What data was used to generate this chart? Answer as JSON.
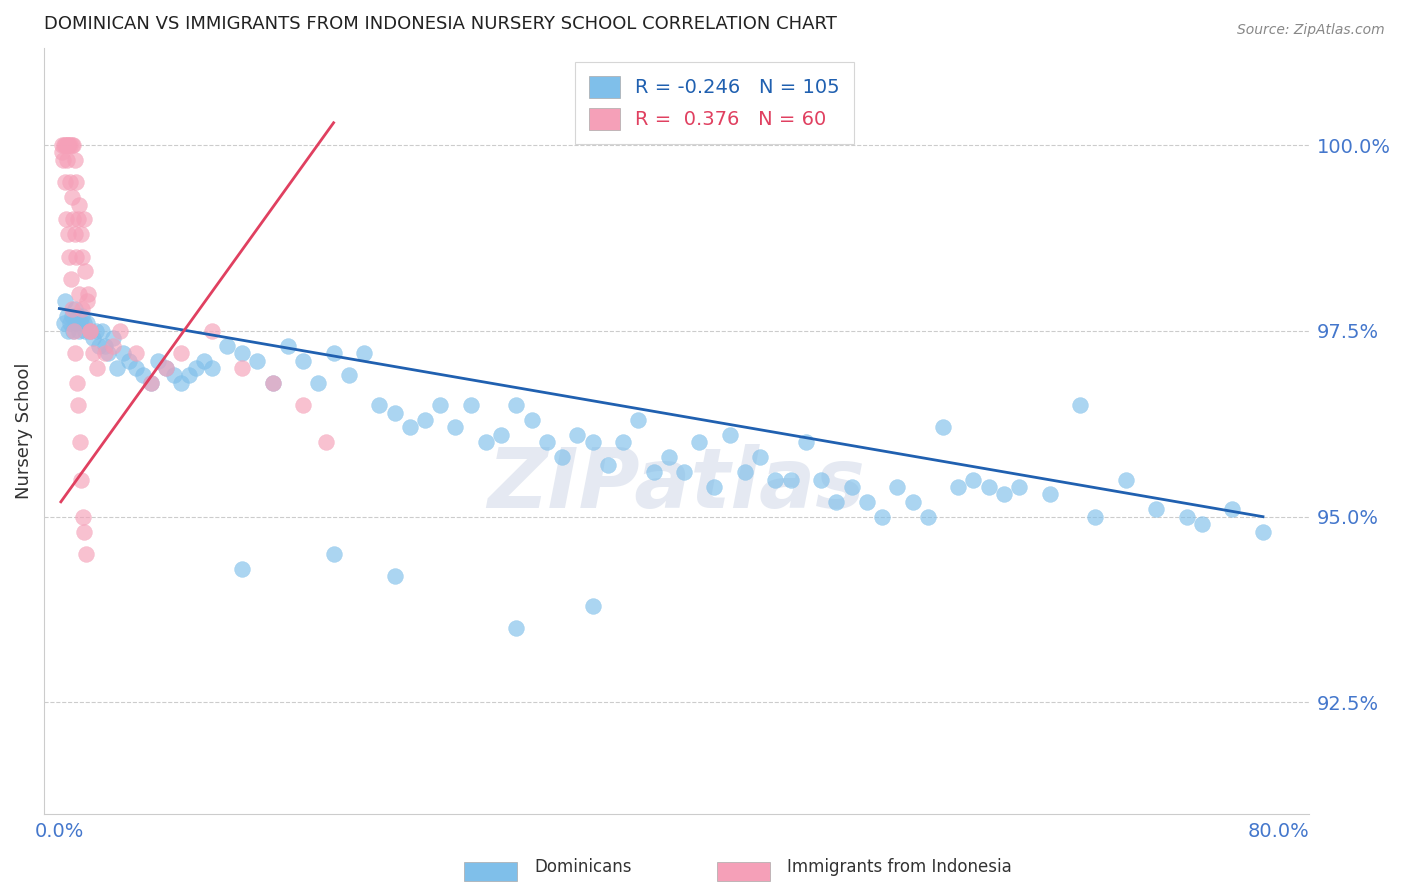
{
  "title": "DOMINICAN VS IMMIGRANTS FROM INDONESIA NURSERY SCHOOL CORRELATION CHART",
  "source": "Source: ZipAtlas.com",
  "ylabel": "Nursery School",
  "legend_labels": [
    "Dominicans",
    "Immigrants from Indonesia"
  ],
  "blue_R": -0.246,
  "blue_N": 105,
  "pink_R": 0.376,
  "pink_N": 60,
  "xlim": [
    -1.0,
    82
  ],
  "ylim": [
    91.0,
    101.3
  ],
  "yticks": [
    92.5,
    95.0,
    97.5,
    100.0
  ],
  "ytick_labels": [
    "92.5%",
    "95.0%",
    "97.5%",
    "100.0%"
  ],
  "xticks": [
    0,
    10,
    20,
    30,
    40,
    50,
    60,
    70,
    80
  ],
  "xtick_labels": [
    "0.0%",
    "",
    "",
    "",
    "",
    "",
    "",
    "",
    "80.0%"
  ],
  "watermark": "ZIPatlas",
  "blue_color": "#7fbfea",
  "pink_color": "#f5a0b8",
  "blue_line_color": "#2060b0",
  "pink_line_color": "#e04060",
  "tick_color": "#4477cc",
  "grid_color": "#cccccc",
  "blue_line_x": [
    0,
    79
  ],
  "blue_line_y": [
    97.8,
    95.0
  ],
  "pink_line_x": [
    0.1,
    18
  ],
  "pink_line_y": [
    95.2,
    100.3
  ],
  "blue_dots_x": [
    0.3,
    0.4,
    0.5,
    0.6,
    0.7,
    0.8,
    0.9,
    1.0,
    1.1,
    1.2,
    1.3,
    1.4,
    1.5,
    1.6,
    1.7,
    1.8,
    2.0,
    2.2,
    2.4,
    2.6,
    2.8,
    3.0,
    3.2,
    3.5,
    3.8,
    4.2,
    4.6,
    5.0,
    5.5,
    6.0,
    6.5,
    7.0,
    7.5,
    8.0,
    8.5,
    9.0,
    9.5,
    10.0,
    11.0,
    12.0,
    13.0,
    14.0,
    15.0,
    16.0,
    17.0,
    18.0,
    19.0,
    20.0,
    21.0,
    22.0,
    23.0,
    24.0,
    25.0,
    26.0,
    27.0,
    28.0,
    29.0,
    30.0,
    31.0,
    32.0,
    33.0,
    34.0,
    35.0,
    36.0,
    37.0,
    38.0,
    39.0,
    40.0,
    41.0,
    42.0,
    43.0,
    44.0,
    45.0,
    46.0,
    47.0,
    48.0,
    49.0,
    50.0,
    51.0,
    52.0,
    53.0,
    54.0,
    55.0,
    56.0,
    57.0,
    58.0,
    59.0,
    60.0,
    61.0,
    62.0,
    63.0,
    65.0,
    67.0,
    68.0,
    70.0,
    72.0,
    74.0,
    75.0,
    77.0,
    79.0,
    30.0,
    35.0,
    22.0,
    18.0,
    12.0
  ],
  "blue_dots_y": [
    97.6,
    97.9,
    97.7,
    97.5,
    97.6,
    97.7,
    97.5,
    97.8,
    97.6,
    97.7,
    97.5,
    97.6,
    97.7,
    97.6,
    97.5,
    97.6,
    97.5,
    97.4,
    97.5,
    97.3,
    97.5,
    97.3,
    97.2,
    97.4,
    97.0,
    97.2,
    97.1,
    97.0,
    96.9,
    96.8,
    97.1,
    97.0,
    96.9,
    96.8,
    96.9,
    97.0,
    97.1,
    97.0,
    97.3,
    97.2,
    97.1,
    96.8,
    97.3,
    97.1,
    96.8,
    97.2,
    96.9,
    97.2,
    96.5,
    96.4,
    96.2,
    96.3,
    96.5,
    96.2,
    96.5,
    96.0,
    96.1,
    96.5,
    96.3,
    96.0,
    95.8,
    96.1,
    96.0,
    95.7,
    96.0,
    96.3,
    95.6,
    95.8,
    95.6,
    96.0,
    95.4,
    96.1,
    95.6,
    95.8,
    95.5,
    95.5,
    96.0,
    95.5,
    95.2,
    95.4,
    95.2,
    95.0,
    95.4,
    95.2,
    95.0,
    96.2,
    95.4,
    95.5,
    95.4,
    95.3,
    95.4,
    95.3,
    96.5,
    95.0,
    95.5,
    95.1,
    95.0,
    94.9,
    95.1,
    94.8,
    93.5,
    93.8,
    94.2,
    94.5,
    94.3
  ],
  "pink_dots_x": [
    0.2,
    0.3,
    0.4,
    0.5,
    0.6,
    0.7,
    0.8,
    0.9,
    1.0,
    1.1,
    1.2,
    1.3,
    1.4,
    1.5,
    1.6,
    1.7,
    1.8,
    1.9,
    0.25,
    0.35,
    0.45,
    0.55,
    0.65,
    0.75,
    0.85,
    0.95,
    1.05,
    1.15,
    1.25,
    1.35,
    1.45,
    1.55,
    1.65,
    1.75,
    2.0,
    2.2,
    2.5,
    3.0,
    3.5,
    4.0,
    5.0,
    6.0,
    7.0,
    8.0,
    10.0,
    12.0,
    14.0,
    16.0,
    17.5,
    0.15,
    0.5,
    0.6,
    0.7,
    0.8,
    0.9,
    1.0,
    1.1,
    1.3,
    1.5,
    2.0
  ],
  "pink_dots_y": [
    100.0,
    100.0,
    100.0,
    100.0,
    100.0,
    100.0,
    100.0,
    100.0,
    99.8,
    99.5,
    99.0,
    99.2,
    98.8,
    98.5,
    99.0,
    98.3,
    97.9,
    98.0,
    99.8,
    99.5,
    99.0,
    98.8,
    98.5,
    98.2,
    97.8,
    97.5,
    97.2,
    96.8,
    96.5,
    96.0,
    95.5,
    95.0,
    94.8,
    94.5,
    97.5,
    97.2,
    97.0,
    97.2,
    97.3,
    97.5,
    97.2,
    96.8,
    97.0,
    97.2,
    97.5,
    97.0,
    96.8,
    96.5,
    96.0,
    99.9,
    99.8,
    100.0,
    99.5,
    99.3,
    99.0,
    98.8,
    98.5,
    98.0,
    97.8,
    97.5
  ]
}
